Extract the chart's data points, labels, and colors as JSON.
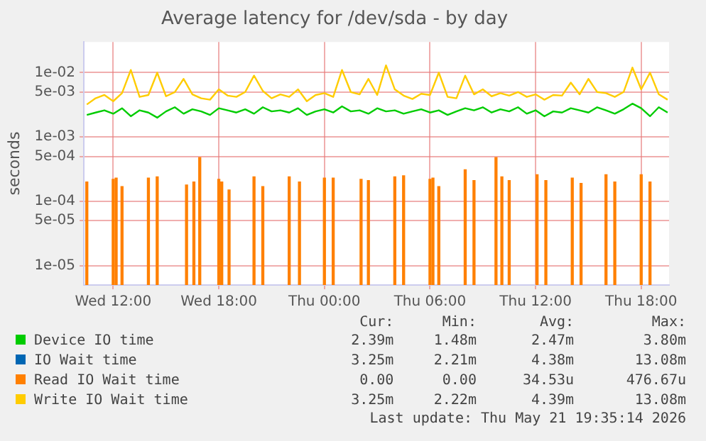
{
  "chart_data": {
    "type": "line",
    "title": "Average latency for /dev/sda - by day",
    "ylabel": "seconds",
    "x": [
      "2026-05-20T10:30",
      "2026-05-20T11:00",
      "2026-05-20T11:30",
      "2026-05-20T12:00",
      "2026-05-20T12:30",
      "2026-05-20T13:00",
      "2026-05-20T13:30",
      "2026-05-20T14:00",
      "2026-05-20T14:30",
      "2026-05-20T15:00",
      "2026-05-20T15:30",
      "2026-05-20T16:00",
      "2026-05-20T16:30",
      "2026-05-20T17:00",
      "2026-05-20T17:30",
      "2026-05-20T18:00",
      "2026-05-20T18:30",
      "2026-05-20T19:00",
      "2026-05-20T19:30",
      "2026-05-20T20:00",
      "2026-05-20T20:30",
      "2026-05-20T21:00",
      "2026-05-20T21:30",
      "2026-05-20T22:00",
      "2026-05-20T22:30",
      "2026-05-20T23:00",
      "2026-05-20T23:30",
      "2026-05-21T00:00",
      "2026-05-21T00:30",
      "2026-05-21T01:00",
      "2026-05-21T01:30",
      "2026-05-21T02:00",
      "2026-05-21T02:30",
      "2026-05-21T03:00",
      "2026-05-21T03:30",
      "2026-05-21T04:00",
      "2026-05-21T04:30",
      "2026-05-21T05:00",
      "2026-05-21T05:30",
      "2026-05-21T06:00",
      "2026-05-21T06:30",
      "2026-05-21T07:00",
      "2026-05-21T07:30",
      "2026-05-21T08:00",
      "2026-05-21T08:30",
      "2026-05-21T09:00",
      "2026-05-21T09:30",
      "2026-05-21T10:00",
      "2026-05-21T10:30",
      "2026-05-21T11:00",
      "2026-05-21T11:30",
      "2026-05-21T12:00",
      "2026-05-21T12:30",
      "2026-05-21T13:00",
      "2026-05-21T13:30",
      "2026-05-21T14:00",
      "2026-05-21T14:30",
      "2026-05-21T15:00",
      "2026-05-21T15:30",
      "2026-05-21T16:00",
      "2026-05-21T16:30",
      "2026-05-21T17:00",
      "2026-05-21T17:30",
      "2026-05-21T18:00",
      "2026-05-21T18:30",
      "2026-05-21T19:00",
      "2026-05-21T19:30"
    ],
    "series": [
      {
        "name": "Device IO time",
        "color": "#00cc00",
        "values": [
          0.0022,
          0.0024,
          0.0026,
          0.0023,
          0.0028,
          0.0021,
          0.0026,
          0.0024,
          0.002,
          0.0025,
          0.0029,
          0.0023,
          0.0027,
          0.0025,
          0.0022,
          0.0028,
          0.0026,
          0.0024,
          0.0027,
          0.0023,
          0.0029,
          0.0025,
          0.0026,
          0.0024,
          0.0028,
          0.0022,
          0.0025,
          0.0027,
          0.0024,
          0.003,
          0.0025,
          0.0026,
          0.0023,
          0.0028,
          0.0025,
          0.0026,
          0.0023,
          0.0025,
          0.0027,
          0.0024,
          0.0026,
          0.0022,
          0.0025,
          0.0028,
          0.0026,
          0.0029,
          0.0024,
          0.0027,
          0.0025,
          0.0029,
          0.0023,
          0.0026,
          0.0021,
          0.0025,
          0.0024,
          0.0028,
          0.0026,
          0.0024,
          0.0029,
          0.0026,
          0.0023,
          0.0027,
          0.0033,
          0.0028,
          0.0021,
          0.0029,
          0.0024
        ]
      },
      {
        "name": "IO Wait time",
        "color": "#0066b3",
        "values": [
          null,
          null,
          null,
          null,
          null,
          null,
          null,
          null,
          null,
          null,
          null,
          null,
          null,
          null,
          null,
          null,
          null,
          null,
          null,
          null,
          null,
          null,
          null,
          null,
          null,
          null,
          null,
          null,
          null,
          null,
          null,
          null,
          null,
          null,
          null,
          null,
          null,
          null,
          null,
          null,
          null,
          null,
          null,
          null,
          null,
          null,
          null,
          null,
          null,
          null,
          null,
          null,
          null,
          null,
          null,
          null,
          null,
          null,
          null,
          null,
          null,
          null,
          null,
          null,
          null,
          null,
          null
        ]
      },
      {
        "name": "Read IO Wait time",
        "type": "bar",
        "color": "#ff8000",
        "x": [
          "2026-05-20T10:30",
          "2026-05-20T12:00",
          "2026-05-20T12:10",
          "2026-05-20T12:30",
          "2026-05-20T14:00",
          "2026-05-20T14:30",
          "2026-05-20T16:10",
          "2026-05-20T16:35",
          "2026-05-20T16:55",
          "2026-05-20T18:00",
          "2026-05-20T18:10",
          "2026-05-20T18:35",
          "2026-05-20T20:00",
          "2026-05-20T20:30",
          "2026-05-20T22:00",
          "2026-05-20T22:35",
          "2026-05-21T00:00",
          "2026-05-21T00:30",
          "2026-05-21T02:05",
          "2026-05-21T02:30",
          "2026-05-21T04:00",
          "2026-05-21T04:30",
          "2026-05-21T06:00",
          "2026-05-21T06:10",
          "2026-05-21T06:30",
          "2026-05-21T08:00",
          "2026-05-21T08:30",
          "2026-05-21T09:45",
          "2026-05-21T10:05",
          "2026-05-21T10:30",
          "2026-05-21T12:05",
          "2026-05-21T12:35",
          "2026-05-21T14:05",
          "2026-05-21T14:35",
          "2026-05-21T16:00",
          "2026-05-21T16:30",
          "2026-05-21T18:00",
          "2026-05-21T18:30"
        ],
        "values": [
          0.0002,
          0.00022,
          0.00023,
          0.00017,
          0.00023,
          0.00024,
          0.00018,
          0.0002,
          0.00048,
          0.00022,
          0.0002,
          0.00015,
          0.00024,
          0.00017,
          0.00024,
          0.0002,
          0.00023,
          0.00023,
          0.00022,
          0.00021,
          0.00024,
          0.00025,
          0.00022,
          0.00023,
          0.00017,
          0.00031,
          0.00021,
          0.00048,
          0.00024,
          0.00021,
          0.00026,
          0.00021,
          0.00023,
          0.00019,
          0.00026,
          0.0002,
          0.00026,
          0.0002
        ]
      },
      {
        "name": "Write IO Wait time",
        "color": "#ffcc00",
        "values": [
          0.0032,
          0.004,
          0.0045,
          0.0036,
          0.0048,
          0.011,
          0.0042,
          0.0045,
          0.01,
          0.0043,
          0.005,
          0.008,
          0.0046,
          0.004,
          0.0038,
          0.0055,
          0.0044,
          0.0042,
          0.005,
          0.009,
          0.0052,
          0.004,
          0.0046,
          0.0042,
          0.0055,
          0.0036,
          0.0045,
          0.0048,
          0.0042,
          0.011,
          0.005,
          0.0046,
          0.008,
          0.0045,
          0.013,
          0.0055,
          0.0044,
          0.0039,
          0.0047,
          0.0045,
          0.01,
          0.0042,
          0.004,
          0.009,
          0.0046,
          0.0055,
          0.0043,
          0.0048,
          0.0044,
          0.005,
          0.0042,
          0.0046,
          0.0038,
          0.0045,
          0.0044,
          0.007,
          0.0046,
          0.008,
          0.005,
          0.0048,
          0.0042,
          0.005,
          0.012,
          0.0055,
          0.01,
          0.0046,
          0.0038
        ]
      }
    ],
    "xlim": [
      "2026-05-20T10:20",
      "2026-05-21T19:35"
    ],
    "xticks": [
      {
        "value": "2026-05-20T12:00",
        "label": "Wed 12:00"
      },
      {
        "value": "2026-05-20T18:00",
        "label": "Wed 18:00"
      },
      {
        "value": "2026-05-21T00:00",
        "label": "Thu 00:00"
      },
      {
        "value": "2026-05-21T06:00",
        "label": "Thu 06:00"
      },
      {
        "value": "2026-05-21T12:00",
        "label": "Thu 12:00"
      },
      {
        "value": "2026-05-21T18:00",
        "label": "Thu 18:00"
      }
    ],
    "ylim": [
      5e-06,
      0.03
    ],
    "yticks": [
      {
        "value": 1e-05,
        "label": "1e-05"
      },
      {
        "value": 5e-05,
        "label": "5e-05"
      },
      {
        "value": 0.0001,
        "label": "1e-04"
      },
      {
        "value": 0.0005,
        "label": "5e-04"
      },
      {
        "value": 0.001,
        "label": "1e-03"
      },
      {
        "value": 0.005,
        "label": "5e-03"
      },
      {
        "value": 0.01,
        "label": "1e-02"
      }
    ],
    "log": "y",
    "grid": true,
    "legend": "bottom",
    "marker": "none",
    "line_style": "solid",
    "annotations": [
      "Cur:",
      "Min:",
      "Avg:",
      "Max:",
      "2.39m",
      "1.48m",
      "2.47m",
      "3.80m",
      "3.25m",
      "2.21m",
      "4.38m",
      "13.08m",
      "0.00",
      "0.00",
      "34.53u",
      "476.67u",
      "3.25m",
      "2.22m",
      "4.39m",
      "13.08m",
      "Last update: Thu May 21 19:35:14 2026"
    ]
  }
}
